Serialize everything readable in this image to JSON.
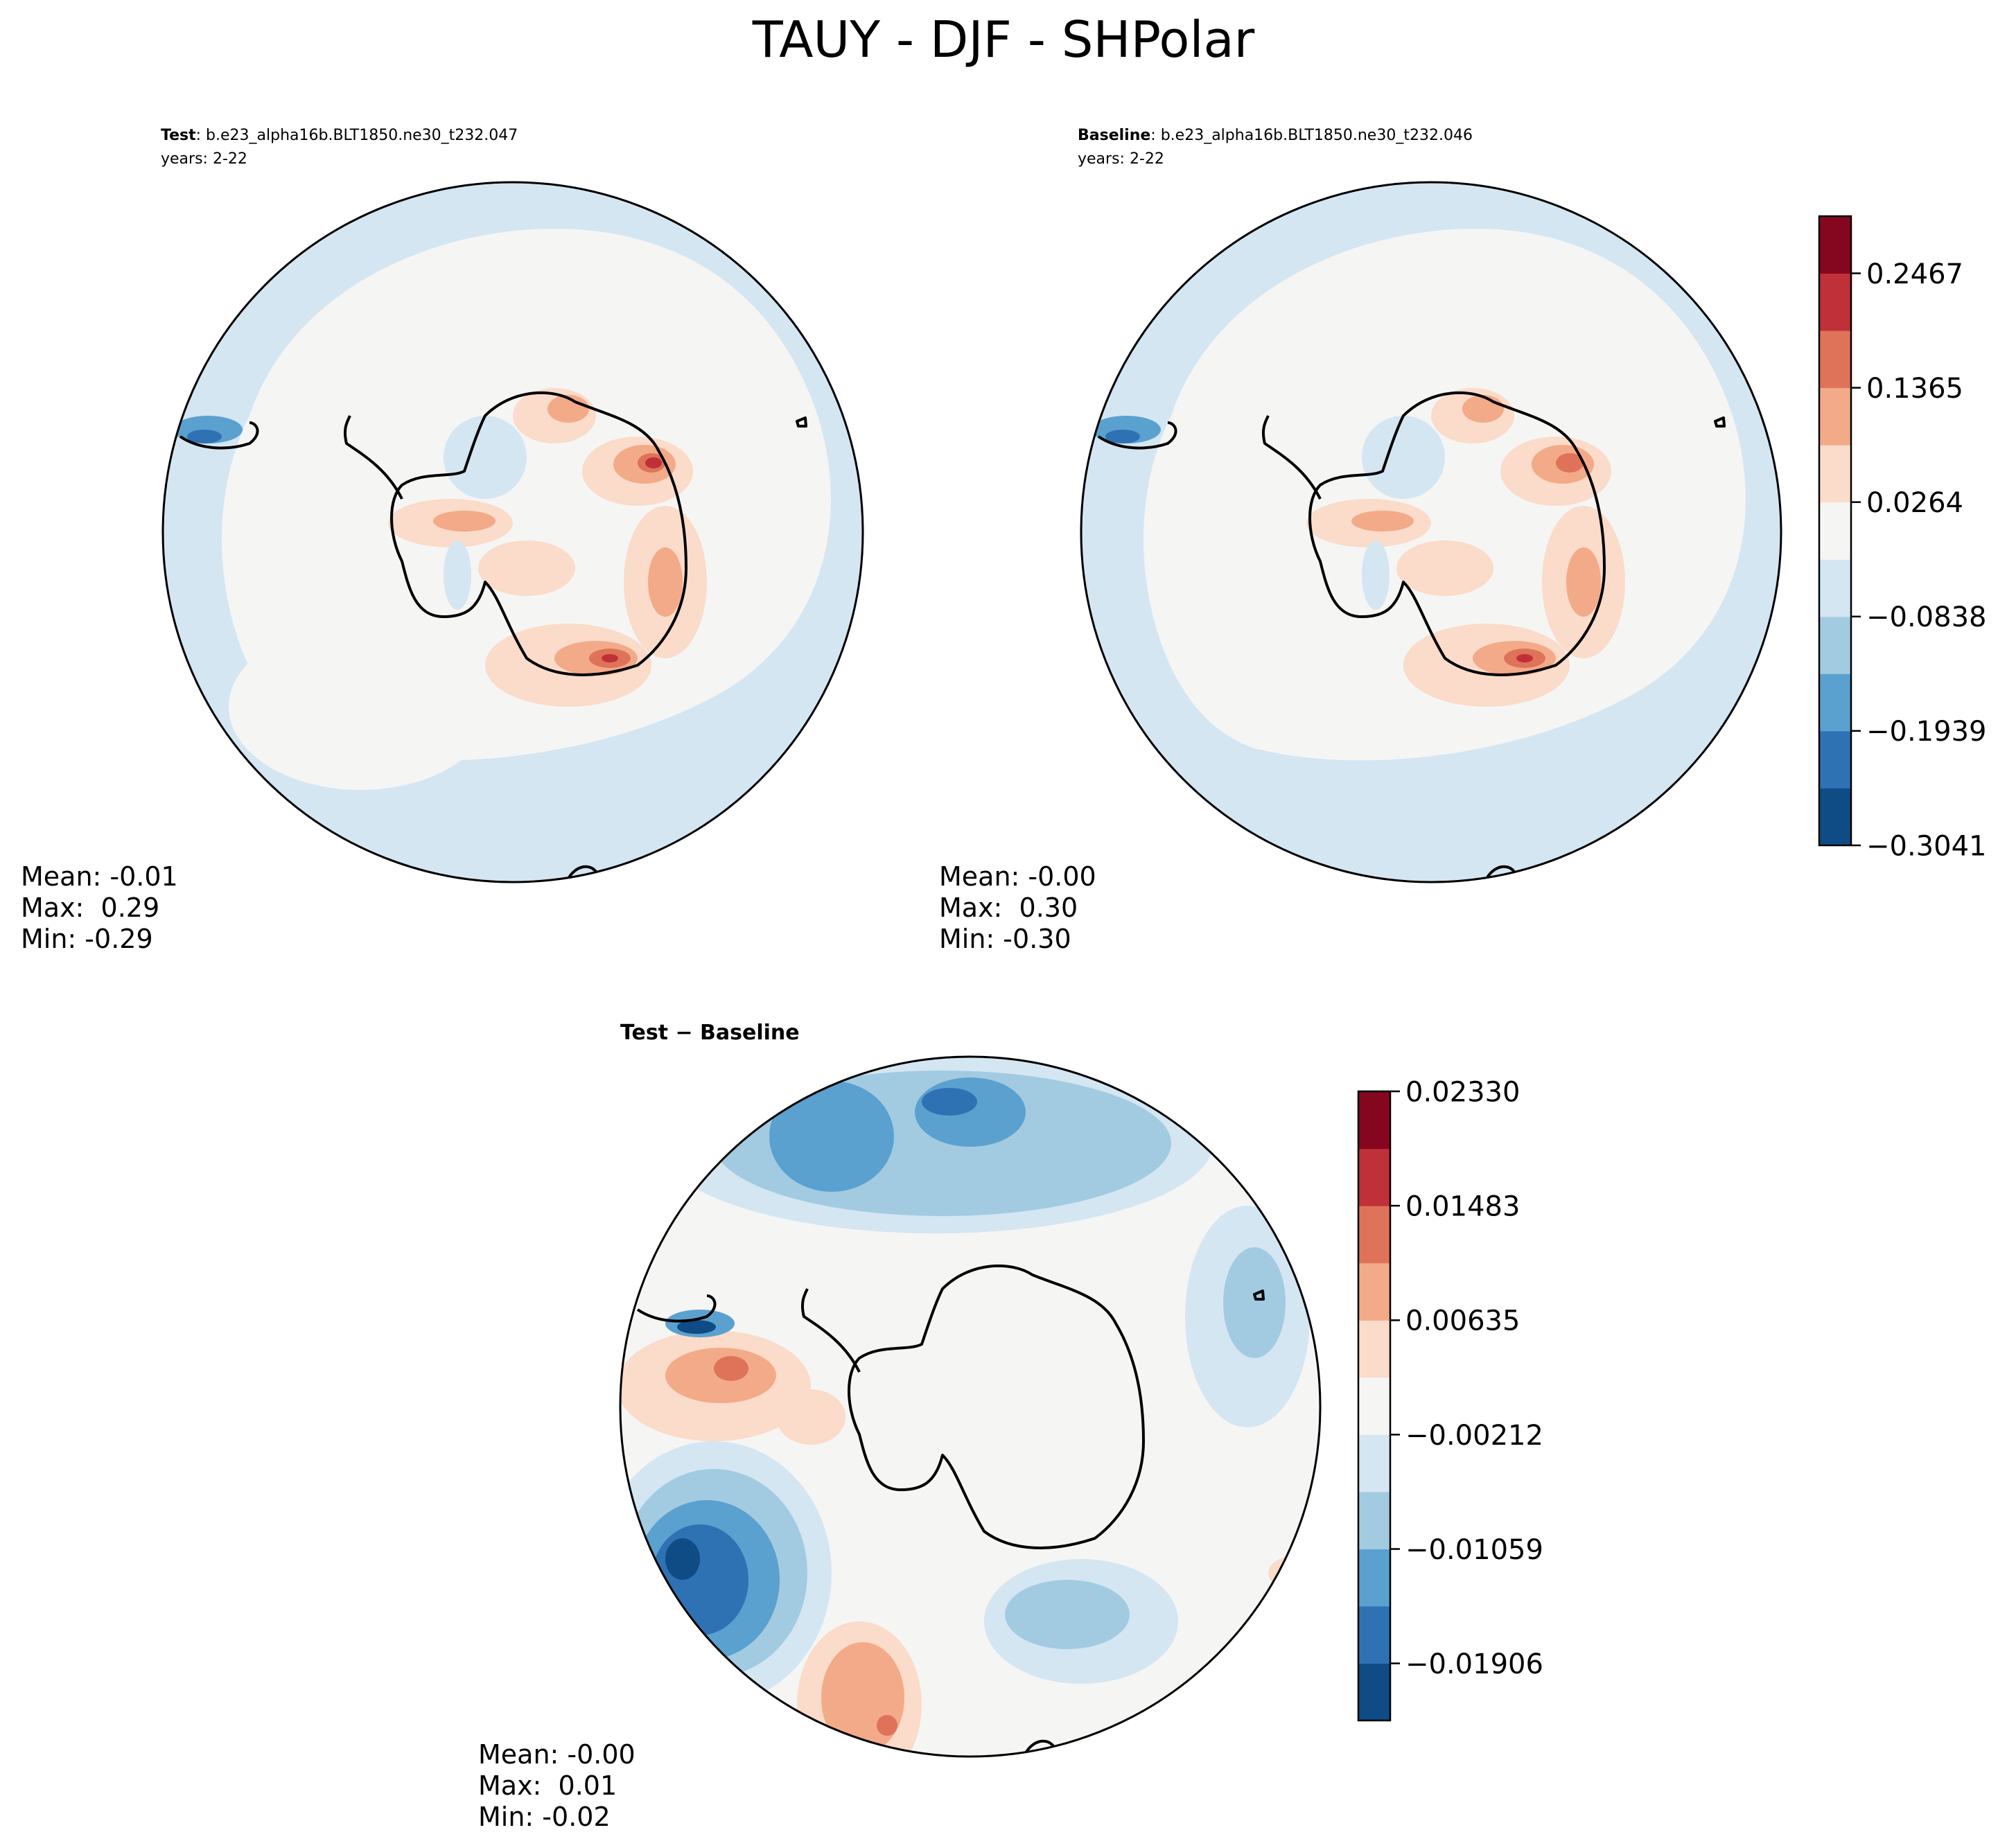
{
  "figure": {
    "title": "TAUY - DJF - SHPolar"
  },
  "colors": {
    "levels": [
      "#0f4c86",
      "#2e72b3",
      "#5aa1cf",
      "#a2cbe2",
      "#d4e6f1",
      "#f5f5f4",
      "#fbdbc9",
      "#f3aa88",
      "#de735a",
      "#bf3038",
      "#85071f"
    ],
    "coast": "#000000",
    "frame": "#000000"
  },
  "chart_data": [
    {
      "type": "contour-map",
      "projection": "south-polar-stereographic",
      "panel": "test",
      "title_bold": "Test",
      "title_rest": ": b.e23_alpha16b.BLT1850.ne30_t232.047",
      "years": "years: 2-22",
      "stats": {
        "mean": "Mean: -0.01",
        "max": "Max:  0.29",
        "min": "Min: -0.29"
      },
      "levels": [
        -0.3041,
        -0.249,
        -0.1939,
        -0.1388,
        -0.0838,
        -0.0287,
        0.0264,
        0.0815,
        0.1365,
        0.1916,
        0.2467,
        0.3017
      ],
      "features": [
        {
          "shape": "polygon",
          "level": 4,
          "desc": "Ocean ring",
          "points": [
            [
              -90,
              0
            ],
            [
              -45,
              0
            ]
          ]
        },
        {
          "shape": "ellipse",
          "level": 7,
          "desc": "Antarctic coastal positive maxima"
        },
        {
          "shape": "ellipse",
          "level": 9,
          "desc": "Ross/Wilkes local maxima"
        },
        {
          "shape": "ellipse",
          "level": 1,
          "desc": "South American coast negative"
        }
      ]
    },
    {
      "type": "contour-map",
      "projection": "south-polar-stereographic",
      "panel": "baseline",
      "title_bold": "Baseline",
      "title_rest": ": b.e23_alpha16b.BLT1850.ne30_t232.046",
      "years": "years: 2-22",
      "stats": {
        "mean": "Mean: -0.00",
        "max": "Max:  0.30",
        "min": "Min: -0.30"
      },
      "levels": [
        -0.3041,
        -0.249,
        -0.1939,
        -0.1388,
        -0.0838,
        -0.0287,
        0.0264,
        0.0815,
        0.1365,
        0.1916,
        0.2467,
        0.3017
      ],
      "colorbar": {
        "ticks": [
          "0.2467",
          "0.1365",
          "0.0264",
          "−0.0838",
          "−0.1939",
          "−0.3041"
        ],
        "tick_values": [
          0.2467,
          0.1365,
          0.0264,
          -0.0838,
          -0.1939,
          -0.3041
        ]
      }
    },
    {
      "type": "contour-map",
      "projection": "south-polar-stereographic",
      "panel": "difference",
      "title": "Test − Baseline",
      "stats": {
        "mean": "Mean: -0.00",
        "max": "Max:  0.01",
        "min": "Min: -0.02"
      },
      "levels": [
        -0.02329,
        -0.01906,
        -0.01482,
        -0.01059,
        -0.00635,
        -0.00212,
        0.00212,
        0.00635,
        0.01059,
        0.01483,
        0.01906,
        0.0233
      ],
      "colorbar": {
        "ticks": [
          "0.02330",
          "0.01483",
          "0.00635",
          "−0.00212",
          "−0.01059",
          "−0.01906"
        ],
        "tick_values": [
          0.0233,
          0.01483,
          0.00635,
          -0.00212,
          -0.01059,
          -0.01906
        ]
      }
    }
  ]
}
